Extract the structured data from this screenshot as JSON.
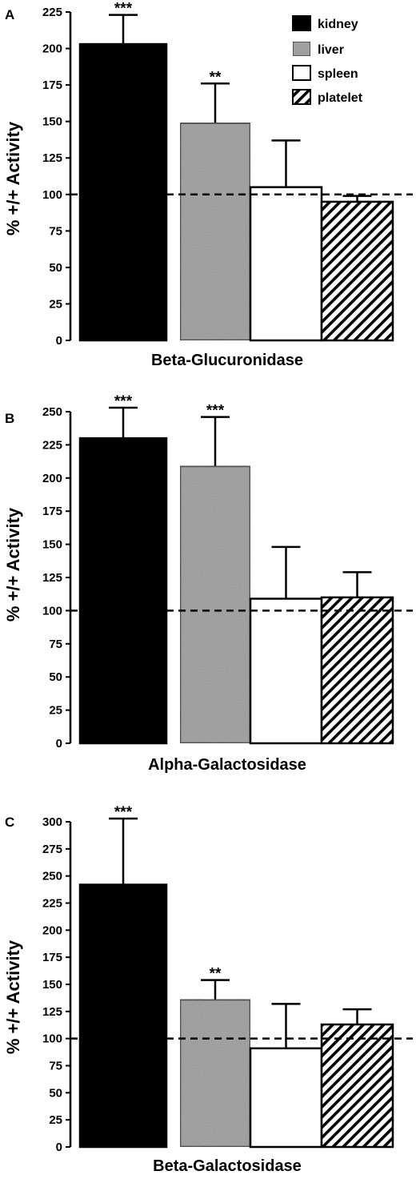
{
  "colors": {
    "kidney": "#000000",
    "liver": "#9a9a9a",
    "spleen": "#ffffff",
    "platelet": "hatched"
  },
  "chart_data": [
    {
      "type": "bar",
      "panel_label": "A",
      "title": "",
      "xlabel": "Beta-Glucuronidase",
      "ylabel": "% +/+ Activity",
      "ylim": [
        0,
        225
      ],
      "yticks": [
        0,
        25,
        50,
        75,
        100,
        125,
        150,
        175,
        200,
        225
      ],
      "reference_line": 100,
      "legend": [
        "kidney",
        "liver",
        "spleen",
        "platelet"
      ],
      "legend_position": "top-right",
      "categories": [
        "kidney",
        "liver",
        "spleen",
        "platelet"
      ],
      "values": [
        203,
        149,
        105,
        95
      ],
      "error_upper": [
        223,
        176,
        137,
        99
      ],
      "significance": [
        "***",
        "**",
        "",
        ""
      ]
    },
    {
      "type": "bar",
      "panel_label": "B",
      "title": "",
      "xlabel": "Alpha-Galactosidase",
      "ylabel": "% +/+ Activity",
      "ylim": [
        0,
        250
      ],
      "yticks": [
        0,
        25,
        50,
        75,
        100,
        125,
        150,
        175,
        200,
        225,
        250
      ],
      "reference_line": 100,
      "categories": [
        "kidney",
        "liver",
        "spleen",
        "platelet"
      ],
      "values": [
        230,
        209,
        109,
        110
      ],
      "error_upper": [
        253,
        246,
        148,
        129
      ],
      "significance": [
        "***",
        "***",
        "",
        ""
      ]
    },
    {
      "type": "bar",
      "panel_label": "C",
      "title": "",
      "xlabel": "Beta-Galactosidase",
      "ylabel": "% +/+ Activity",
      "ylim": [
        0,
        300
      ],
      "yticks": [
        0,
        25,
        50,
        75,
        100,
        125,
        150,
        175,
        200,
        225,
        250,
        275,
        300
      ],
      "reference_line": 100,
      "categories": [
        "kidney",
        "liver",
        "spleen",
        "platelet"
      ],
      "values": [
        242,
        136,
        91,
        113
      ],
      "error_upper": [
        303,
        154,
        132,
        127
      ],
      "significance": [
        "***",
        "**",
        "",
        ""
      ]
    }
  ]
}
